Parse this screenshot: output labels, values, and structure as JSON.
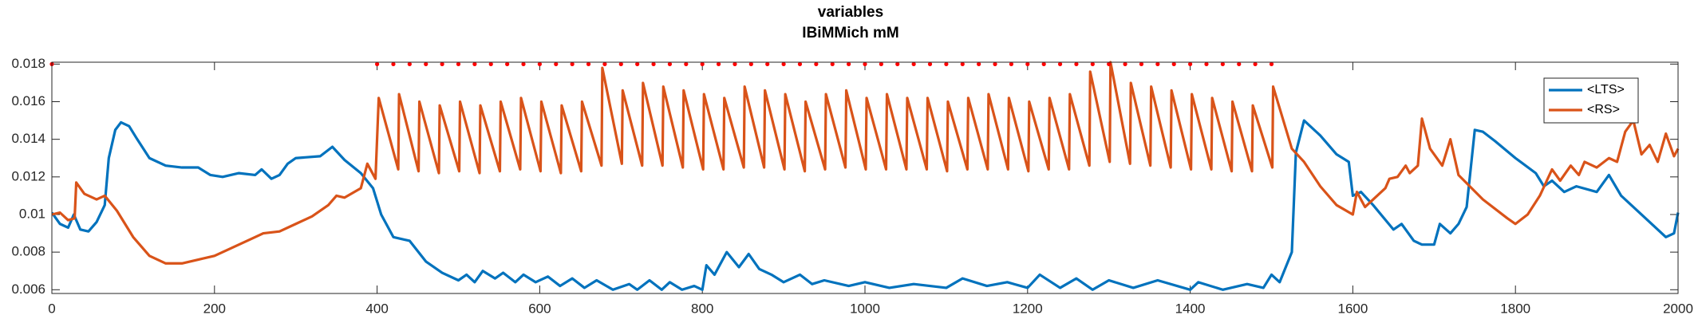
{
  "chart_data": {
    "type": "line",
    "title": [
      "variables",
      "IBiMMich mM"
    ],
    "xlim": [
      0,
      2000
    ],
    "xticks": [
      0,
      200,
      400,
      600,
      800,
      1000,
      1200,
      1400,
      1600,
      1800,
      2000
    ],
    "ylim": [
      0.0058,
      0.0181
    ],
    "yticks": [
      0.006,
      0.008,
      0.01,
      0.012,
      0.014,
      0.016,
      0.018
    ],
    "grid": false,
    "legend": "northeast",
    "series": [
      {
        "name": "<LTS>",
        "color": "#0072bd",
        "x": [
          0,
          10,
          20,
          27,
          35,
          45,
          55,
          65,
          70,
          78,
          85,
          95,
          105,
          120,
          140,
          160,
          180,
          195,
          210,
          230,
          250,
          258,
          270,
          280,
          290,
          300,
          330,
          345,
          360,
          380,
          395,
          405,
          420,
          440,
          460,
          480,
          500,
          510,
          520,
          530,
          545,
          555,
          570,
          580,
          595,
          610,
          625,
          640,
          655,
          670,
          690,
          710,
          720,
          735,
          750,
          760,
          775,
          790,
          800,
          805,
          815,
          830,
          845,
          857,
          870,
          885,
          900,
          920,
          935,
          950,
          980,
          1000,
          1030,
          1060,
          1100,
          1120,
          1150,
          1175,
          1200,
          1215,
          1240,
          1260,
          1280,
          1300,
          1330,
          1360,
          1400,
          1410,
          1440,
          1470,
          1490,
          1500,
          1510,
          1525,
          1530,
          1540,
          1560,
          1580,
          1595,
          1600,
          1610,
          1625,
          1650,
          1660,
          1675,
          1685,
          1700,
          1707,
          1720,
          1730,
          1740,
          1750,
          1760,
          1775,
          1800,
          1825,
          1835,
          1845,
          1860,
          1875,
          1900,
          1915,
          1930,
          1960,
          1985,
          1995,
          2000
        ],
        "values": [
          0.0101,
          0.0095,
          0.0093,
          0.01,
          0.0092,
          0.0091,
          0.0096,
          0.0105,
          0.013,
          0.0145,
          0.0149,
          0.0147,
          0.014,
          0.013,
          0.0126,
          0.0125,
          0.0125,
          0.0121,
          0.012,
          0.0122,
          0.0121,
          0.0124,
          0.0119,
          0.0121,
          0.0127,
          0.013,
          0.0131,
          0.0136,
          0.0129,
          0.0122,
          0.0114,
          0.01,
          0.0088,
          0.0086,
          0.0075,
          0.0069,
          0.0065,
          0.0068,
          0.0064,
          0.007,
          0.0066,
          0.0069,
          0.0064,
          0.0068,
          0.0064,
          0.0067,
          0.0062,
          0.0066,
          0.0061,
          0.0065,
          0.006,
          0.0063,
          0.006,
          0.0065,
          0.006,
          0.0064,
          0.006,
          0.0062,
          0.006,
          0.0073,
          0.0068,
          0.008,
          0.0072,
          0.0079,
          0.0071,
          0.0068,
          0.0064,
          0.0068,
          0.0063,
          0.0065,
          0.0062,
          0.0064,
          0.0061,
          0.0063,
          0.0061,
          0.0066,
          0.0062,
          0.0064,
          0.0061,
          0.0068,
          0.0061,
          0.0066,
          0.006,
          0.0065,
          0.0061,
          0.0065,
          0.006,
          0.0064,
          0.006,
          0.0063,
          0.0061,
          0.0068,
          0.0064,
          0.008,
          0.0133,
          0.015,
          0.0142,
          0.0132,
          0.0128,
          0.011,
          0.0112,
          0.0105,
          0.0092,
          0.0095,
          0.0086,
          0.0084,
          0.0084,
          0.0095,
          0.009,
          0.0095,
          0.0104,
          0.0145,
          0.0144,
          0.0139,
          0.013,
          0.0122,
          0.0115,
          0.0118,
          0.0112,
          0.0115,
          0.0112,
          0.0121,
          0.011,
          0.0098,
          0.0088,
          0.009,
          0.0101
        ]
      },
      {
        "name": "<RS>",
        "color": "#d95319",
        "x": [
          0,
          10,
          20,
          28,
          30,
          40,
          55,
          65,
          80,
          100,
          120,
          140,
          160,
          180,
          200,
          220,
          250,
          260,
          280,
          300,
          320,
          340,
          350,
          360,
          380,
          388,
          398,
          402,
          426,
          427,
          451,
          452,
          476,
          477,
          501,
          502,
          526,
          527,
          551,
          552,
          576,
          577,
          601,
          602,
          626,
          627,
          651,
          652,
          676,
          677,
          701,
          702,
          726,
          727,
          751,
          752,
          776,
          777,
          801,
          802,
          826,
          827,
          851,
          852,
          876,
          877,
          901,
          902,
          926,
          927,
          951,
          952,
          976,
          977,
          1001,
          1002,
          1026,
          1027,
          1051,
          1052,
          1076,
          1077,
          1101,
          1102,
          1126,
          1127,
          1151,
          1152,
          1176,
          1177,
          1201,
          1202,
          1226,
          1227,
          1251,
          1252,
          1276,
          1277,
          1301,
          1302,
          1326,
          1327,
          1351,
          1352,
          1376,
          1377,
          1401,
          1402,
          1426,
          1427,
          1451,
          1452,
          1476,
          1477,
          1501,
          1502,
          1525,
          1540,
          1560,
          1580,
          1600,
          1605,
          1615,
          1640,
          1645,
          1655,
          1665,
          1670,
          1680,
          1685,
          1695,
          1710,
          1720,
          1730,
          1760,
          1790,
          1800,
          1815,
          1830,
          1845,
          1855,
          1868,
          1878,
          1885,
          1900,
          1915,
          1925,
          1935,
          1945,
          1955,
          1965,
          1975,
          1985,
          1995,
          2000
        ],
        "values": [
          0.01,
          0.0101,
          0.0097,
          0.0098,
          0.0117,
          0.0111,
          0.0108,
          0.011,
          0.0102,
          0.0088,
          0.0078,
          0.0074,
          0.0074,
          0.0076,
          0.0078,
          0.0082,
          0.0088,
          0.009,
          0.0091,
          0.0095,
          0.0099,
          0.0105,
          0.011,
          0.0109,
          0.0114,
          0.0127,
          0.0119,
          0.0162,
          0.0124,
          0.0164,
          0.0123,
          0.016,
          0.0122,
          0.0158,
          0.0123,
          0.016,
          0.0122,
          0.0158,
          0.0123,
          0.016,
          0.0124,
          0.0162,
          0.0123,
          0.016,
          0.0122,
          0.0158,
          0.0123,
          0.016,
          0.0126,
          0.0178,
          0.0127,
          0.0166,
          0.0126,
          0.017,
          0.0126,
          0.0168,
          0.0125,
          0.0166,
          0.0124,
          0.0164,
          0.0124,
          0.0162,
          0.0125,
          0.0168,
          0.0125,
          0.0166,
          0.0124,
          0.0164,
          0.0123,
          0.016,
          0.0124,
          0.0164,
          0.0125,
          0.0166,
          0.0124,
          0.0162,
          0.0124,
          0.0164,
          0.0124,
          0.0162,
          0.0124,
          0.0162,
          0.0123,
          0.016,
          0.0124,
          0.0162,
          0.0124,
          0.0164,
          0.0124,
          0.0162,
          0.0123,
          0.016,
          0.0124,
          0.0162,
          0.0124,
          0.0164,
          0.0126,
          0.0176,
          0.0128,
          0.0181,
          0.0127,
          0.017,
          0.0126,
          0.0168,
          0.0125,
          0.0166,
          0.0124,
          0.0164,
          0.0124,
          0.0162,
          0.0123,
          0.016,
          0.0123,
          0.0158,
          0.0125,
          0.0168,
          0.0135,
          0.0128,
          0.0115,
          0.0105,
          0.01,
          0.0112,
          0.0104,
          0.0114,
          0.0119,
          0.012,
          0.0126,
          0.0122,
          0.0126,
          0.0151,
          0.0135,
          0.0126,
          0.014,
          0.0121,
          0.0108,
          0.0098,
          0.0095,
          0.01,
          0.011,
          0.0124,
          0.0118,
          0.0126,
          0.0121,
          0.0128,
          0.0125,
          0.013,
          0.0128,
          0.0144,
          0.015,
          0.0132,
          0.0137,
          0.0128,
          0.0143,
          0.0131,
          0.0135
        ]
      }
    ],
    "markers": {
      "color": "#ff0000",
      "x": [
        0,
        400,
        420,
        440,
        460,
        480,
        500,
        520,
        540,
        560,
        580,
        600,
        620,
        640,
        660,
        680,
        700,
        720,
        740,
        760,
        780,
        800,
        820,
        840,
        860,
        880,
        900,
        920,
        940,
        960,
        980,
        1000,
        1020,
        1040,
        1060,
        1080,
        1100,
        1120,
        1140,
        1160,
        1180,
        1200,
        1220,
        1240,
        1260,
        1280,
        1300,
        1320,
        1340,
        1360,
        1380,
        1400,
        1420,
        1440,
        1460,
        1480,
        1500
      ],
      "values": [
        0.018,
        0.018,
        0.018,
        0.018,
        0.018,
        0.018,
        0.018,
        0.018,
        0.018,
        0.018,
        0.018,
        0.018,
        0.018,
        0.018,
        0.018,
        0.018,
        0.018,
        0.018,
        0.018,
        0.018,
        0.018,
        0.018,
        0.018,
        0.018,
        0.018,
        0.018,
        0.018,
        0.018,
        0.018,
        0.018,
        0.018,
        0.018,
        0.018,
        0.018,
        0.018,
        0.018,
        0.018,
        0.018,
        0.018,
        0.018,
        0.018,
        0.018,
        0.018,
        0.018,
        0.018,
        0.018,
        0.018,
        0.018,
        0.018,
        0.018,
        0.018,
        0.018,
        0.018,
        0.018,
        0.018,
        0.018,
        0.018
      ]
    }
  }
}
